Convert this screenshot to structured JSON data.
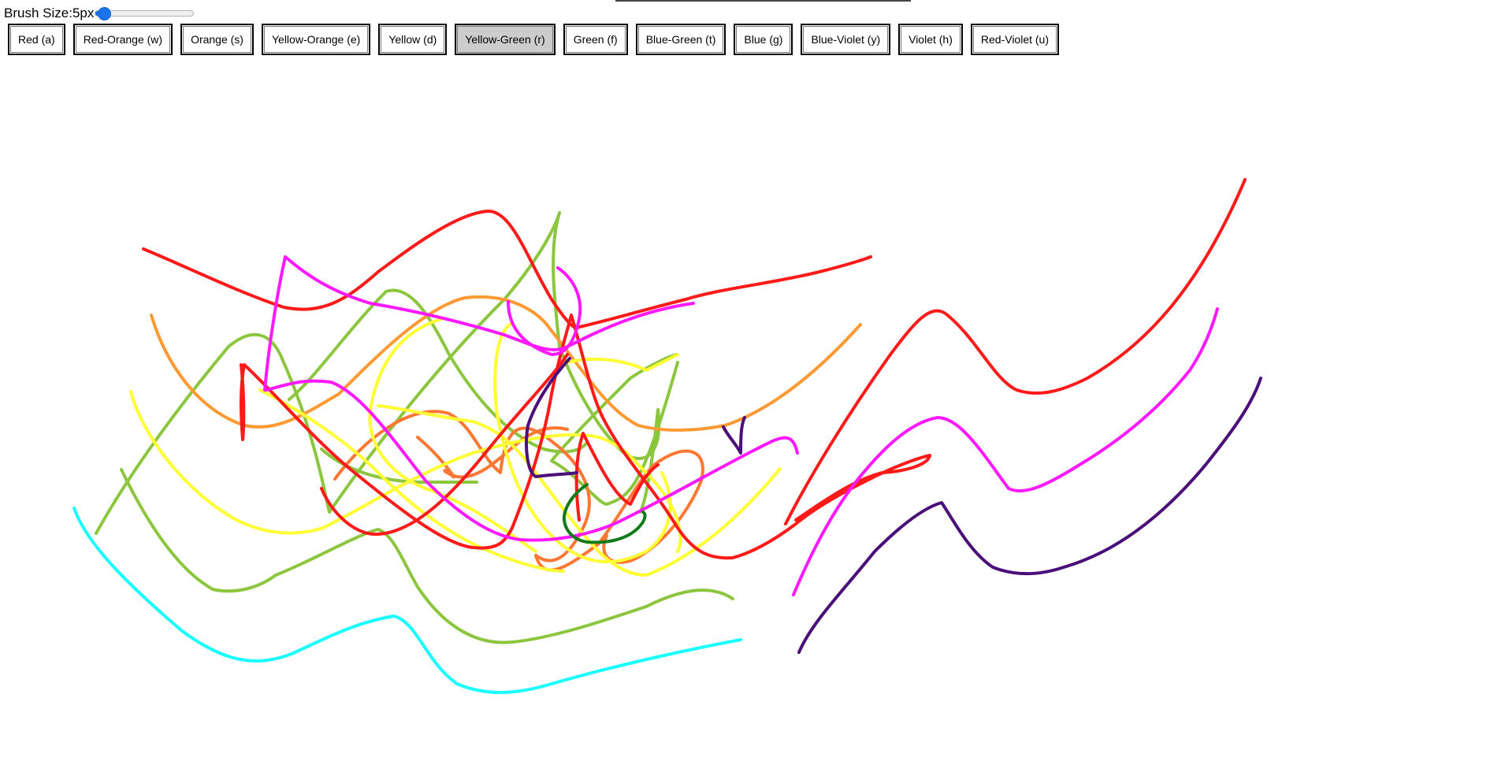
{
  "brush": {
    "label": "Brush Size: ",
    "value_text": "5px",
    "value": 5,
    "min": 1,
    "max": 50
  },
  "colors": [
    {
      "label": "Red (a)",
      "hex": "#ff0000"
    },
    {
      "label": "Red-Orange (w)",
      "hex": "#ff5300"
    },
    {
      "label": "Orange (s)",
      "hex": "#ffa500"
    },
    {
      "label": "Yellow-Orange (e)",
      "hex": "#ffc800"
    },
    {
      "label": "Yellow (d)",
      "hex": "#ffff00"
    },
    {
      "label": "Yellow-Green (r)",
      "hex": "#9acd32",
      "active": true
    },
    {
      "label": "Green (f)",
      "hex": "#008000"
    },
    {
      "label": "Blue-Green (t)",
      "hex": "#0d98ba"
    },
    {
      "label": "Blue (g)",
      "hex": "#0000ff"
    },
    {
      "label": "Blue-Violet (y)",
      "hex": "#8a2be2"
    },
    {
      "label": "Violet (h)",
      "hex": "#4b0082"
    },
    {
      "label": "Red-Violet (u)",
      "hex": "#c71585"
    }
  ],
  "stroke_colors": {
    "red": "#ff1a1a",
    "magenta": "#ff19ff",
    "yellow_green": "#8cc63f",
    "orange": "#ff9933",
    "yellow": "#ffff33",
    "red_orange": "#ff7733",
    "cyan": "#19ffff",
    "violet": "#4b0f7a",
    "green": "#117a1a"
  }
}
